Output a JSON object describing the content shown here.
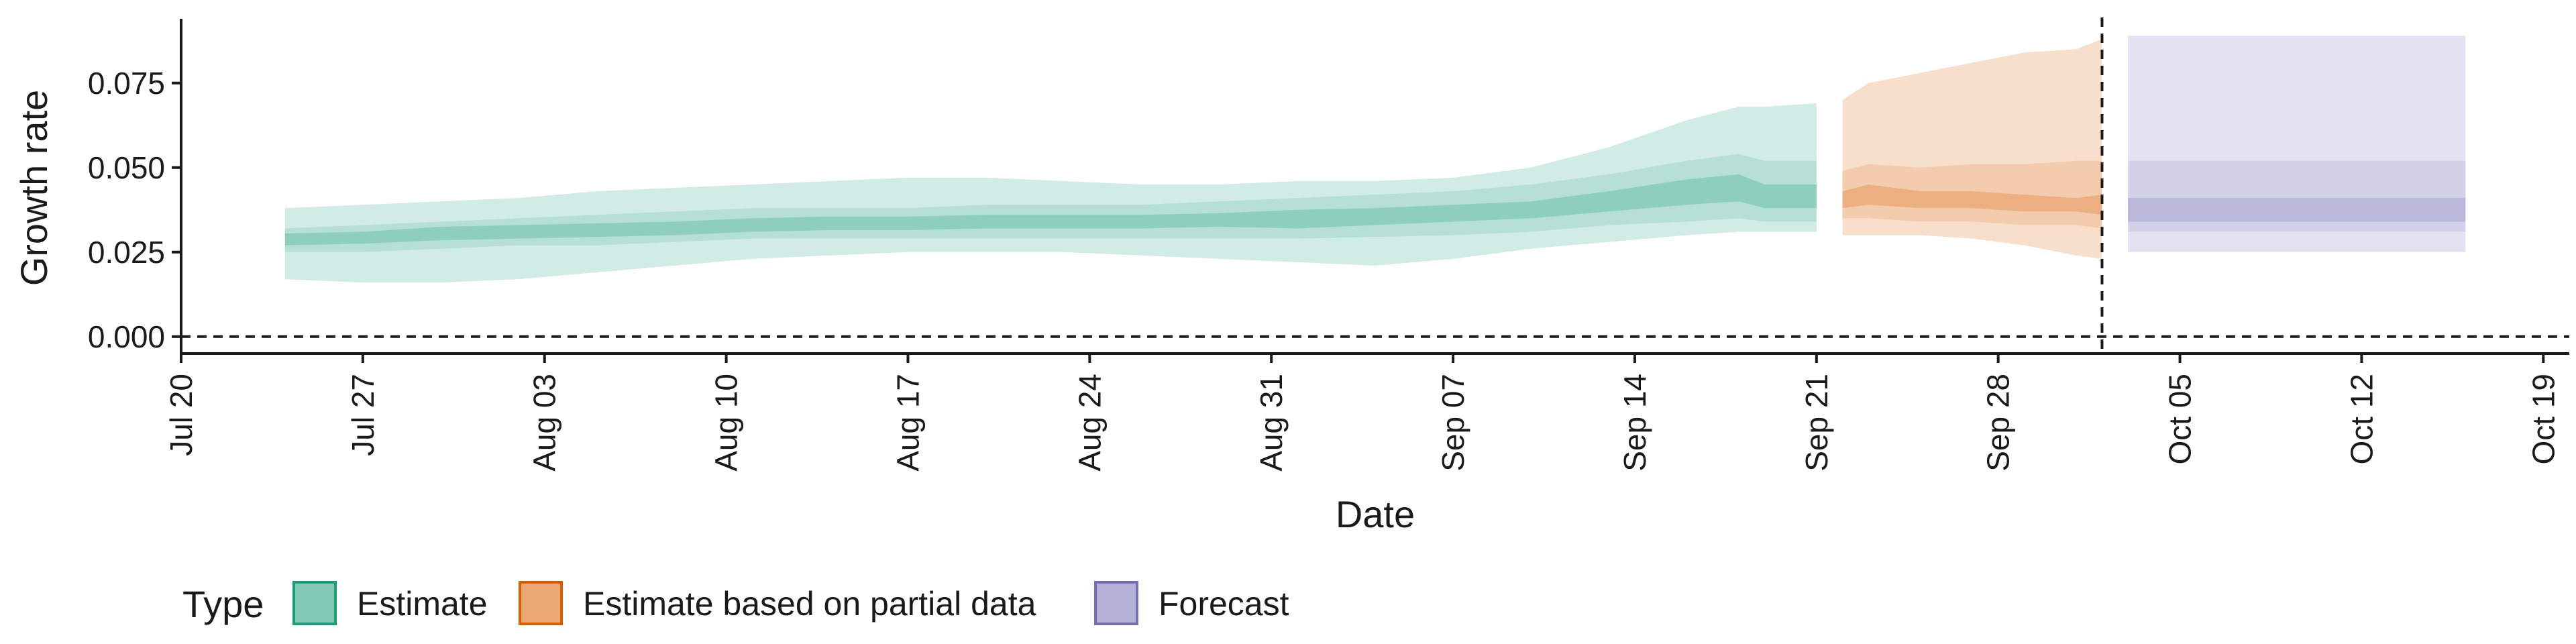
{
  "chart_data": {
    "type": "area",
    "xlabel": "Date",
    "ylabel": "Growth rate",
    "x_axis_kind": "date",
    "xlim": [
      "2020-07-20",
      "2020-10-20"
    ],
    "ylim": [
      -0.005,
      0.094
    ],
    "x_ticks": [
      {
        "date": "2020-07-20",
        "label": "Jul 20"
      },
      {
        "date": "2020-07-27",
        "label": "Jul 27"
      },
      {
        "date": "2020-08-03",
        "label": "Aug 03"
      },
      {
        "date": "2020-08-10",
        "label": "Aug 10"
      },
      {
        "date": "2020-08-17",
        "label": "Aug 17"
      },
      {
        "date": "2020-08-24",
        "label": "Aug 24"
      },
      {
        "date": "2020-08-31",
        "label": "Aug 31"
      },
      {
        "date": "2020-09-07",
        "label": "Sep 07"
      },
      {
        "date": "2020-09-14",
        "label": "Sep 14"
      },
      {
        "date": "2020-09-21",
        "label": "Sep 21"
      },
      {
        "date": "2020-09-28",
        "label": "Sep 28"
      },
      {
        "date": "2020-10-05",
        "label": "Oct 05"
      },
      {
        "date": "2020-10-12",
        "label": "Oct 12"
      },
      {
        "date": "2020-10-19",
        "label": "Oct 19"
      }
    ],
    "y_ticks": [
      {
        "value": 0.0,
        "label": "0.000"
      },
      {
        "value": 0.025,
        "label": "0.025"
      },
      {
        "value": 0.05,
        "label": "0.050"
      },
      {
        "value": 0.075,
        "label": "0.075"
      }
    ],
    "reference_lines": {
      "horizontal_y": 0.0,
      "vertical_date": "2020-10-02",
      "style": "dashed"
    },
    "grid": false,
    "legend": {
      "title": "Type",
      "position": "bottom-left",
      "entries": [
        {
          "label": "Estimate",
          "color": "#1b9e77"
        },
        {
          "label": "Estimate based on partial data",
          "color": "#d95f02"
        },
        {
          "label": "Forecast",
          "color": "#7570b3"
        }
      ]
    },
    "series": [
      {
        "name": "Estimate",
        "color": "#1b9e77",
        "dates": [
          "2020-07-24",
          "2020-07-27",
          "2020-07-30",
          "2020-08-02",
          "2020-08-05",
          "2020-08-08",
          "2020-08-11",
          "2020-08-14",
          "2020-08-17",
          "2020-08-20",
          "2020-08-23",
          "2020-08-26",
          "2020-08-29",
          "2020-09-01",
          "2020-09-04",
          "2020-09-07",
          "2020-09-10",
          "2020-09-13",
          "2020-09-16",
          "2020-09-18",
          "2020-09-19",
          "2020-09-21"
        ],
        "median": [
          0.0285,
          0.029,
          0.0305,
          0.031,
          0.0315,
          0.032,
          0.033,
          0.0335,
          0.0335,
          0.034,
          0.034,
          0.034,
          0.0345,
          0.0345,
          0.0355,
          0.0365,
          0.0375,
          0.04,
          0.043,
          0.0445,
          0.0415,
          0.0415
        ],
        "lower_20": [
          0.027,
          0.0275,
          0.0285,
          0.029,
          0.0295,
          0.03,
          0.031,
          0.0315,
          0.0315,
          0.032,
          0.032,
          0.032,
          0.0325,
          0.032,
          0.033,
          0.034,
          0.035,
          0.037,
          0.039,
          0.04,
          0.038,
          0.038
        ],
        "upper_20": [
          0.0305,
          0.031,
          0.0325,
          0.033,
          0.0335,
          0.034,
          0.035,
          0.0355,
          0.0355,
          0.036,
          0.036,
          0.036,
          0.0365,
          0.0375,
          0.038,
          0.039,
          0.04,
          0.043,
          0.0465,
          0.048,
          0.045,
          0.045
        ],
        "lower_50": [
          0.025,
          0.025,
          0.026,
          0.027,
          0.027,
          0.028,
          0.029,
          0.029,
          0.029,
          0.029,
          0.029,
          0.029,
          0.029,
          0.029,
          0.0295,
          0.03,
          0.031,
          0.033,
          0.034,
          0.035,
          0.034,
          0.034
        ],
        "upper_50": [
          0.032,
          0.033,
          0.034,
          0.035,
          0.036,
          0.037,
          0.038,
          0.038,
          0.038,
          0.039,
          0.039,
          0.039,
          0.04,
          0.041,
          0.042,
          0.043,
          0.045,
          0.048,
          0.052,
          0.054,
          0.052,
          0.052
        ],
        "lower_90": [
          0.017,
          0.016,
          0.016,
          0.017,
          0.019,
          0.021,
          0.023,
          0.024,
          0.025,
          0.025,
          0.025,
          0.024,
          0.023,
          0.022,
          0.021,
          0.023,
          0.026,
          0.028,
          0.03,
          0.031,
          0.031,
          0.031
        ],
        "upper_90": [
          0.038,
          0.039,
          0.04,
          0.041,
          0.043,
          0.044,
          0.045,
          0.046,
          0.047,
          0.047,
          0.046,
          0.045,
          0.045,
          0.046,
          0.046,
          0.047,
          0.05,
          0.056,
          0.064,
          0.068,
          0.068,
          0.069
        ]
      },
      {
        "name": "Estimate based on partial data",
        "color": "#d95f02",
        "dates": [
          "2020-09-22",
          "2020-09-23",
          "2020-09-25",
          "2020-09-27",
          "2020-09-29",
          "2020-10-01",
          "2020-10-02"
        ],
        "median": [
          0.041,
          0.044,
          0.04,
          0.042,
          0.04,
          0.039,
          0.04
        ],
        "lower_20": [
          0.038,
          0.039,
          0.038,
          0.038,
          0.037,
          0.037,
          0.036
        ],
        "upper_20": [
          0.043,
          0.045,
          0.043,
          0.043,
          0.042,
          0.041,
          0.042
        ],
        "lower_50": [
          0.035,
          0.035,
          0.034,
          0.034,
          0.033,
          0.033,
          0.032
        ],
        "upper_50": [
          0.049,
          0.051,
          0.05,
          0.051,
          0.051,
          0.052,
          0.052
        ],
        "lower_90": [
          0.03,
          0.03,
          0.03,
          0.029,
          0.027,
          0.024,
          0.023
        ],
        "upper_90": [
          0.07,
          0.075,
          0.078,
          0.081,
          0.084,
          0.085,
          0.088
        ]
      },
      {
        "name": "Forecast",
        "color": "#7570b3",
        "dates": [
          "2020-10-03",
          "2020-10-16"
        ],
        "median": [
          0.037,
          0.037
        ],
        "lower_20": [
          0.034,
          0.034
        ],
        "upper_20": [
          0.041,
          0.041
        ],
        "lower_50": [
          0.031,
          0.031
        ],
        "upper_50": [
          0.052,
          0.052
        ],
        "lower_90": [
          0.025,
          0.025
        ],
        "upper_90": [
          0.089,
          0.089
        ]
      }
    ]
  }
}
